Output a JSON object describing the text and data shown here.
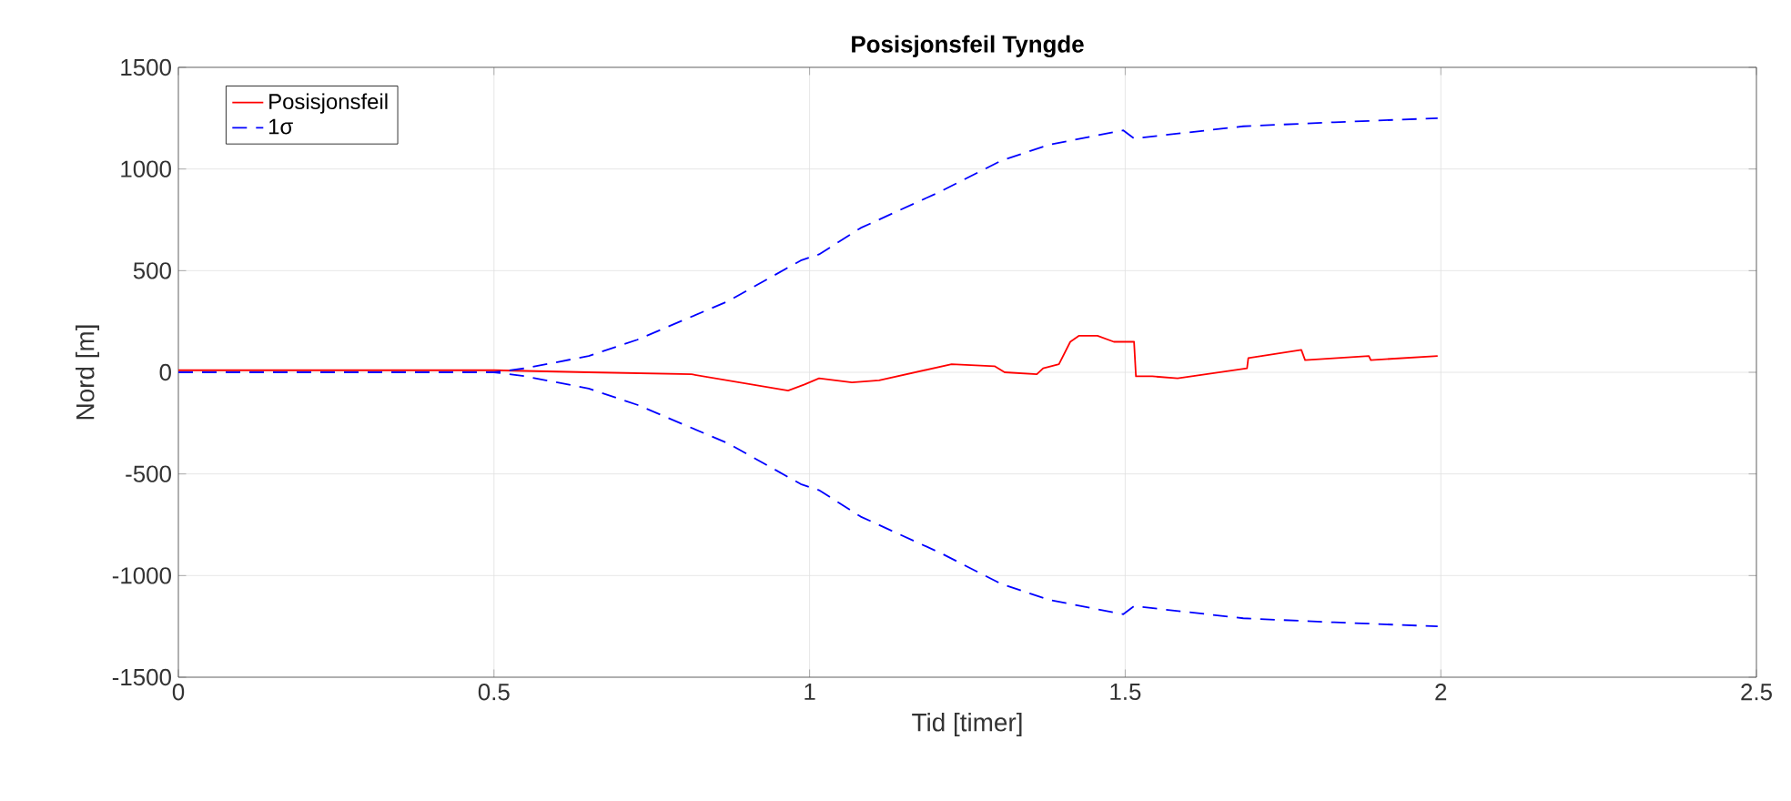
{
  "chart_data": {
    "type": "line",
    "title": "Posisjonsfeil Tyngde",
    "xlabel": "Tid [timer]",
    "ylabel": "Nord [m]",
    "xlim": [
      0,
      2.5
    ],
    "ylim": [
      -1500,
      1500
    ],
    "xticks": [
      0,
      0.5,
      1,
      1.5,
      2,
      2.5
    ],
    "yticks": [
      -1500,
      -1000,
      -500,
      0,
      500,
      1000,
      1500
    ],
    "grid": true,
    "legend": "top left",
    "series": [
      {
        "name": "Posisjonsfeil",
        "color": "#ff0000",
        "line_style": "solid",
        "x": [
          0,
          0.25,
          0.5,
          0.65,
          0.813,
          0.966,
          0.992,
          1.015,
          1.067,
          1.11,
          1.225,
          1.293,
          1.309,
          1.36,
          1.37,
          1.395,
          1.413,
          1.427,
          1.456,
          1.482,
          1.514,
          1.517,
          1.543,
          1.583,
          1.693,
          1.695,
          1.779,
          1.785,
          1.886,
          1.889,
          1.995
        ],
        "values": [
          10,
          10,
          10,
          0,
          -10,
          -90,
          -60,
          -30,
          -50,
          -40,
          40,
          30,
          0,
          -10,
          20,
          40,
          150,
          180,
          180,
          150,
          150,
          -20,
          -20,
          -30,
          20,
          70,
          110,
          60,
          80,
          60,
          80
        ]
      },
      {
        "name": "1σ",
        "color": "#0000ff",
        "line_style": "dashed",
        "x": [
          0,
          0.25,
          0.5,
          0.55,
          0.65,
          0.727,
          0.871,
          0.986,
          1.015,
          1.081,
          1.208,
          1.303,
          1.38,
          1.497,
          1.514,
          1.687,
          1.831,
          1.995
        ],
        "values": [
          0,
          0,
          0,
          20,
          80,
          160,
          350,
          550,
          580,
          710,
          890,
          1040,
          1120,
          1190,
          1150,
          1210,
          1230,
          1250
        ]
      },
      {
        "color": "#0000ff",
        "line_style": "dashed",
        "x": [
          0,
          0.25,
          0.5,
          0.55,
          0.65,
          0.727,
          0.871,
          0.986,
          1.015,
          1.081,
          1.208,
          1.303,
          1.38,
          1.497,
          1.514,
          1.687,
          1.831,
          1.995
        ],
        "values": [
          0,
          0,
          0,
          -20,
          -80,
          -160,
          -350,
          -550,
          -580,
          -710,
          -890,
          -1040,
          -1120,
          -1190,
          -1150,
          -1210,
          -1230,
          -1250
        ]
      }
    ]
  }
}
